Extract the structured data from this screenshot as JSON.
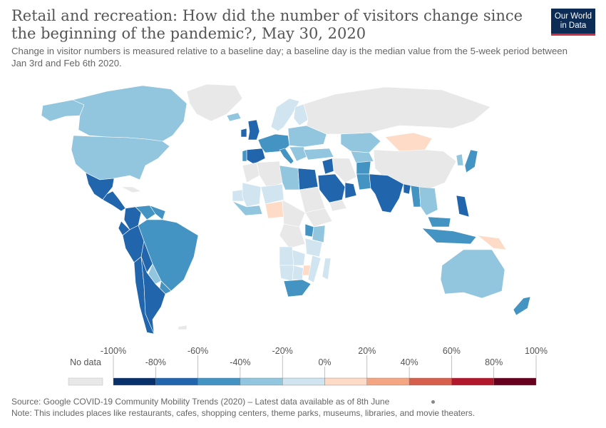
{
  "title": "Retail and recreation: How did the number of visitors change since the beginning of the pandemic?, May 30, 2020",
  "subtitle": "Change in visitor numbers is measured relative to a baseline day; a baseline day is the median value from the 5-week period between Jan 3rd and Feb 6th 2020.",
  "logo": {
    "line1": "Our World",
    "line2": "in Data",
    "bg": "#0c2c55",
    "accent": "#d42b3a"
  },
  "legend": {
    "no_data_label": "No data",
    "no_data_color": "#e8e8e8",
    "upper_labels": [
      "-100%",
      "-60%",
      "-20%",
      "20%",
      "60%",
      "100%"
    ],
    "lower_labels": [
      "-80%",
      "-40%",
      "0%",
      "40%",
      "80%"
    ],
    "bins": [
      {
        "from": -100,
        "to": -80,
        "color": "#08306b"
      },
      {
        "from": -80,
        "to": -60,
        "color": "#2166ac"
      },
      {
        "from": -60,
        "to": -40,
        "color": "#4393c3"
      },
      {
        "from": -40,
        "to": -20,
        "color": "#92c5de"
      },
      {
        "from": -20,
        "to": 0,
        "color": "#d1e5f0"
      },
      {
        "from": 0,
        "to": 20,
        "color": "#fddbc7"
      },
      {
        "from": 20,
        "to": 40,
        "color": "#f4a582"
      },
      {
        "from": 40,
        "to": 60,
        "color": "#d6604d"
      },
      {
        "from": 60,
        "to": 80,
        "color": "#b2182b"
      },
      {
        "from": 80,
        "to": 100,
        "color": "#67001f"
      }
    ]
  },
  "map_colors": {
    "ocean": "#ffffff",
    "no_data": "#e8e8e8",
    "border": "#ffffff"
  },
  "regions": [
    {
      "name": "Canada",
      "color": "#92c5de"
    },
    {
      "name": "Alaska",
      "color": "#92c5de"
    },
    {
      "name": "United States",
      "color": "#92c5de"
    },
    {
      "name": "Greenland",
      "color": "#e8e8e8"
    },
    {
      "name": "Mexico",
      "color": "#2166ac"
    },
    {
      "name": "Central America",
      "color": "#2166ac"
    },
    {
      "name": "Cuba",
      "color": "#e8e8e8"
    },
    {
      "name": "Colombia",
      "color": "#2166ac"
    },
    {
      "name": "Venezuela",
      "color": "#4393c3"
    },
    {
      "name": "Guyana region",
      "color": "#4393c3"
    },
    {
      "name": "Brazil",
      "color": "#4393c3"
    },
    {
      "name": "Peru",
      "color": "#2166ac"
    },
    {
      "name": "Ecuador",
      "color": "#2166ac"
    },
    {
      "name": "Bolivia",
      "color": "#2166ac"
    },
    {
      "name": "Paraguay",
      "color": "#92c5de"
    },
    {
      "name": "Uruguay",
      "color": "#4393c3"
    },
    {
      "name": "Chile",
      "color": "#2166ac"
    },
    {
      "name": "Argentina",
      "color": "#2166ac"
    },
    {
      "name": "United Kingdom",
      "color": "#2166ac"
    },
    {
      "name": "Ireland",
      "color": "#2166ac"
    },
    {
      "name": "Iceland",
      "color": "#92c5de"
    },
    {
      "name": "Scandinavia",
      "color": "#d1e5f0"
    },
    {
      "name": "Finland",
      "color": "#d1e5f0"
    },
    {
      "name": "Western Europe",
      "color": "#4393c3"
    },
    {
      "name": "Spain",
      "color": "#2166ac"
    },
    {
      "name": "Portugal",
      "color": "#4393c3"
    },
    {
      "name": "Italy",
      "color": "#4393c3"
    },
    {
      "name": "Eastern Europe",
      "color": "#92c5de"
    },
    {
      "name": "Balkans",
      "color": "#92c5de"
    },
    {
      "name": "Turkey",
      "color": "#92c5de"
    },
    {
      "name": "Russia",
      "color": "#e8e8e8"
    },
    {
      "name": "Kazakhstan",
      "color": "#92c5de"
    },
    {
      "name": "Central Asia",
      "color": "#92c5de"
    },
    {
      "name": "Mongolia",
      "color": "#fddbc7"
    },
    {
      "name": "China",
      "color": "#e8e8e8"
    },
    {
      "name": "Korea",
      "color": "#92c5de"
    },
    {
      "name": "Japan",
      "color": "#4393c3"
    },
    {
      "name": "Afghanistan",
      "color": "#4393c3"
    },
    {
      "name": "Pakistan",
      "color": "#4393c3"
    },
    {
      "name": "India",
      "color": "#2166ac"
    },
    {
      "name": "Bangladesh",
      "color": "#2166ac"
    },
    {
      "name": "Iran",
      "color": "#e8e8e8"
    },
    {
      "name": "Iraq",
      "color": "#2166ac"
    },
    {
      "name": "Saudi Arabia",
      "color": "#2166ac"
    },
    {
      "name": "Gulf states",
      "color": "#2166ac"
    },
    {
      "name": "Yemen",
      "color": "#e8e8e8"
    },
    {
      "name": "Myanmar",
      "color": "#4393c3"
    },
    {
      "name": "Southeast Asia",
      "color": "#92c5de"
    },
    {
      "name": "Philippines",
      "color": "#2166ac"
    },
    {
      "name": "Malaysia",
      "color": "#4393c3"
    },
    {
      "name": "Indonesia",
      "color": "#4393c3"
    },
    {
      "name": "Papua New Guinea",
      "color": "#fddbc7"
    },
    {
      "name": "Australia",
      "color": "#92c5de"
    },
    {
      "name": "New Zealand",
      "color": "#4393c3"
    },
    {
      "name": "Morocco",
      "color": "#e8e8e8"
    },
    {
      "name": "Algeria",
      "color": "#e8e8e8"
    },
    {
      "name": "Libya",
      "color": "#92c5de"
    },
    {
      "name": "Egypt",
      "color": "#2166ac"
    },
    {
      "name": "Sudan",
      "color": "#e8e8e8"
    },
    {
      "name": "Mali",
      "color": "#d1e5f0"
    },
    {
      "name": "Niger",
      "color": "#d1e5f0"
    },
    {
      "name": "Senegal",
      "color": "#d1e5f0"
    },
    {
      "name": "West Africa coast",
      "color": "#92c5de"
    },
    {
      "name": "Nigeria",
      "color": "#fddbc7"
    },
    {
      "name": "Central Africa",
      "color": "#e8e8e8"
    },
    {
      "name": "DR Congo",
      "color": "#e8e8e8"
    },
    {
      "name": "Ethiopia",
      "color": "#e8e8e8"
    },
    {
      "name": "Uganda",
      "color": "#4393c3"
    },
    {
      "name": "Kenya",
      "color": "#92c5de"
    },
    {
      "name": "Tanzania",
      "color": "#d1e5f0"
    },
    {
      "name": "Angola",
      "color": "#d1e5f0"
    },
    {
      "name": "Zambia",
      "color": "#d1e5f0"
    },
    {
      "name": "Namibia",
      "color": "#d1e5f0"
    },
    {
      "name": "Botswana",
      "color": "#d1e5f0"
    },
    {
      "name": "Zimbabwe",
      "color": "#fddbc7"
    },
    {
      "name": "Mozambique",
      "color": "#d1e5f0"
    },
    {
      "name": "South Africa",
      "color": "#4393c3"
    },
    {
      "name": "Madagascar",
      "color": "#d1e5f0"
    },
    {
      "name": "Antarctic islands",
      "color": "#e8e8e8"
    }
  ],
  "footer": {
    "source": "Source: Google COVID-19 Community Mobility Trends (2020) – Latest data available as of 8th June",
    "note": "Note: This includes places like restaurants, cafes, shopping centers, theme parks, museums, libraries, and movie theaters."
  }
}
